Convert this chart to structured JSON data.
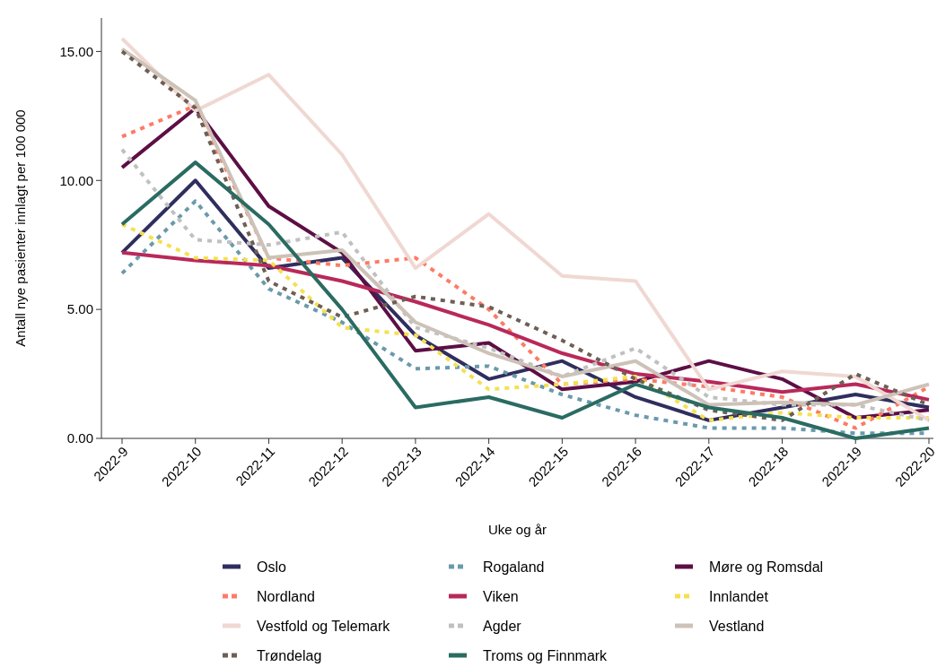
{
  "chart_data": {
    "type": "line",
    "xlabel": "Uke og år",
    "ylabel": "Antall nye pasienter innlagt per 100 000",
    "categories": [
      "2022-9",
      "2022-10",
      "2022-11",
      "2022-12",
      "2022-13",
      "2022-14",
      "2022-15",
      "2022-16",
      "2022-17",
      "2022-18",
      "2022-19",
      "2022-20"
    ],
    "ylim": [
      0,
      16.3
    ],
    "yticks": [
      {
        "value": 0,
        "label": "0.00"
      },
      {
        "value": 5,
        "label": "5.00"
      },
      {
        "value": 10,
        "label": "10.00"
      },
      {
        "value": 15,
        "label": "15.00"
      }
    ],
    "grid": false,
    "legend": "bottom",
    "series": [
      {
        "name": "Oslo",
        "color": "#2f2e5e",
        "line_style": "solid",
        "values": [
          7.2,
          10.0,
          6.6,
          7.0,
          4.0,
          2.3,
          3.0,
          1.6,
          0.7,
          1.2,
          1.7,
          1.2
        ]
      },
      {
        "name": "Rogaland",
        "color": "#6a9aab",
        "line_style": "dotted",
        "values": [
          6.4,
          9.2,
          5.8,
          4.5,
          2.7,
          2.8,
          1.7,
          0.9,
          0.4,
          0.4,
          0.2,
          0.2
        ]
      },
      {
        "name": "Møre og Romsdal",
        "color": "#5c0f45",
        "line_style": "solid",
        "values": [
          10.5,
          12.8,
          9.0,
          7.2,
          3.4,
          3.7,
          1.9,
          2.2,
          3.0,
          2.3,
          0.8,
          1.1
        ]
      },
      {
        "name": "Nordland",
        "color": "#ff7a66",
        "line_style": "dotted",
        "values": [
          11.7,
          12.9,
          7.0,
          6.7,
          7.0,
          5.0,
          2.1,
          2.3,
          2.0,
          1.6,
          0.4,
          2.0
        ]
      },
      {
        "name": "Viken",
        "color": "#b8295a",
        "line_style": "solid",
        "values": [
          7.2,
          6.9,
          6.7,
          6.1,
          5.3,
          4.4,
          3.3,
          2.5,
          2.2,
          1.8,
          2.1,
          1.5
        ]
      },
      {
        "name": "Innlandet",
        "color": "#f5e050",
        "line_style": "dotted",
        "values": [
          8.3,
          7.0,
          6.9,
          4.3,
          4.0,
          1.9,
          2.1,
          2.4,
          0.7,
          1.0,
          0.8,
          0.8
        ]
      },
      {
        "name": "Vestfold og Telemark",
        "color": "#f0d8d2",
        "line_style": "solid",
        "values": [
          15.5,
          12.7,
          14.1,
          11.0,
          6.6,
          8.7,
          6.3,
          6.1,
          1.9,
          2.6,
          2.4,
          0.7
        ]
      },
      {
        "name": "Agder",
        "color": "#c0c0c0",
        "line_style": "dotted",
        "values": [
          11.2,
          7.7,
          7.5,
          8.0,
          4.3,
          3.5,
          2.4,
          3.5,
          1.6,
          1.3,
          1.3,
          0.7
        ]
      },
      {
        "name": "Vestland",
        "color": "#cdc2b8",
        "line_style": "solid",
        "values": [
          15.1,
          13.1,
          7.0,
          7.3,
          4.5,
          3.3,
          2.4,
          3.0,
          1.3,
          1.4,
          1.3,
          2.1
        ]
      },
      {
        "name": "Trøndelag",
        "color": "#6e5f54",
        "line_style": "dotted",
        "values": [
          15.0,
          12.8,
          6.1,
          4.7,
          5.5,
          5.1,
          3.8,
          2.3,
          1.1,
          0.7,
          2.5,
          1.3
        ]
      },
      {
        "name": "Troms og Finnmark",
        "color": "#2a6b62",
        "line_style": "solid",
        "values": [
          8.3,
          10.7,
          8.3,
          5.0,
          1.2,
          1.6,
          0.8,
          2.1,
          1.2,
          0.8,
          0.0,
          0.4
        ]
      }
    ]
  }
}
